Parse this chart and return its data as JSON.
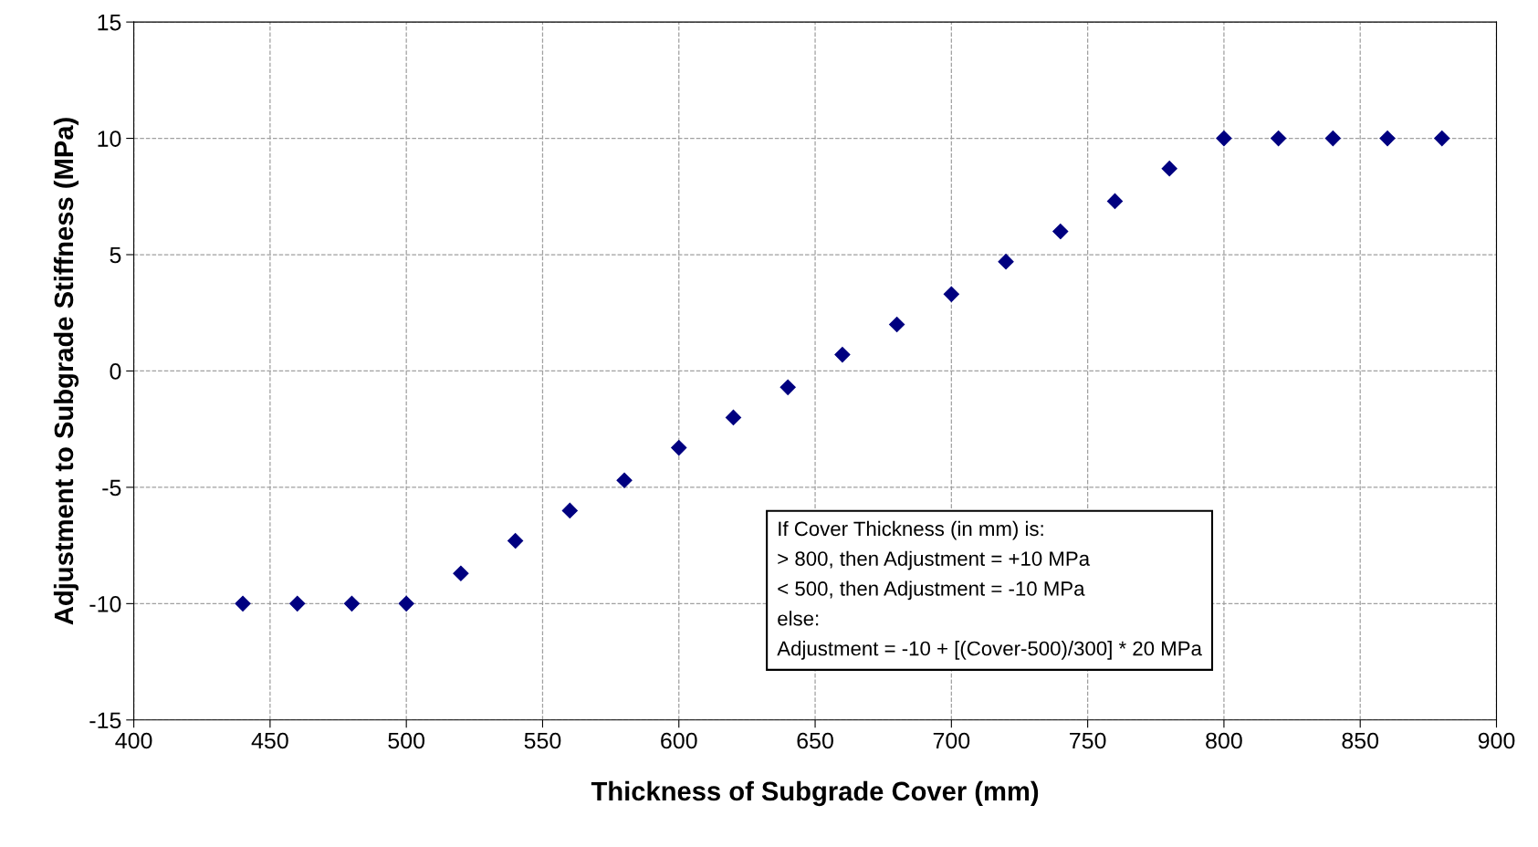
{
  "chart_data": {
    "type": "scatter",
    "xlabel": "Thickness of Subgrade Cover (mm)",
    "ylabel": "Adjustment to Subgrade Stiffness (MPa)",
    "x": [
      440,
      460,
      480,
      500,
      520,
      540,
      560,
      580,
      600,
      620,
      640,
      660,
      680,
      700,
      720,
      740,
      760,
      780,
      800,
      820,
      840,
      860,
      880
    ],
    "series": [
      {
        "color": "#000080",
        "values": [
          -10,
          -10,
          -10,
          -10,
          -8.7,
          -7.3,
          -6,
          -4.7,
          -3.3,
          -2,
          -0.7,
          0.7,
          2,
          3.3,
          4.7,
          6,
          7.3,
          8.7,
          10,
          10,
          10,
          10,
          10
        ]
      }
    ],
    "xlim": [
      400,
      900
    ],
    "xticks": [
      400,
      450,
      500,
      550,
      600,
      650,
      700,
      750,
      800,
      850,
      900
    ],
    "ylim": [
      -15,
      15
    ],
    "yticks": [
      -15,
      -10,
      -5,
      0,
      5,
      10,
      15
    ],
    "grid": true,
    "marker": "diamond",
    "annotations": [
      "If Cover Thickness (in mm) is:",
      "> 800, then Adjustment = +10 MPa",
      "< 500, then Adjustment = -10 MPa",
      "else:",
      "Adjustment = -10 + [(Cover-500)/300] * 20 MPa"
    ]
  }
}
